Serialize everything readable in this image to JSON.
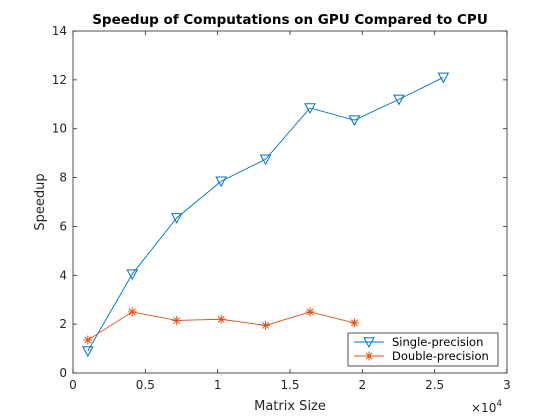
{
  "chart_data": {
    "type": "line",
    "title": "Speedup of Computations on GPU Compared to CPU",
    "xlabel": "Matrix Size",
    "ylabel": "Speedup",
    "x_multiplier_base": "×10",
    "x_multiplier_exp": "4",
    "xlim": [
      0,
      30000
    ],
    "ylim": [
      0,
      14
    ],
    "x_ticks": [
      0,
      5000,
      10000,
      15000,
      20000,
      25000,
      30000
    ],
    "x_tick_labels": [
      "0",
      "0.5",
      "1",
      "1.5",
      "2",
      "2.5",
      "3"
    ],
    "y_ticks": [
      0,
      2,
      4,
      6,
      8,
      10,
      12,
      14
    ],
    "y_tick_labels": [
      "0",
      "2",
      "4",
      "6",
      "8",
      "10",
      "12",
      "14"
    ],
    "grid": false,
    "legend_position": "bottom-right",
    "series": [
      {
        "name": "Single-precision",
        "color": "#0072BD",
        "marker": "triangle-down",
        "x": [
          1024,
          4096,
          7168,
          10240,
          13312,
          16384,
          19456,
          22528,
          25600
        ],
        "y": [
          0.9,
          4.05,
          6.35,
          7.85,
          8.75,
          10.85,
          10.35,
          11.2,
          12.1
        ]
      },
      {
        "name": "Double-precision",
        "color": "#D95319",
        "marker": "asterisk",
        "x": [
          1024,
          4096,
          7168,
          10240,
          13312,
          16384,
          19456
        ],
        "y": [
          1.35,
          2.5,
          2.15,
          2.2,
          1.95,
          2.5,
          2.05
        ]
      }
    ]
  }
}
